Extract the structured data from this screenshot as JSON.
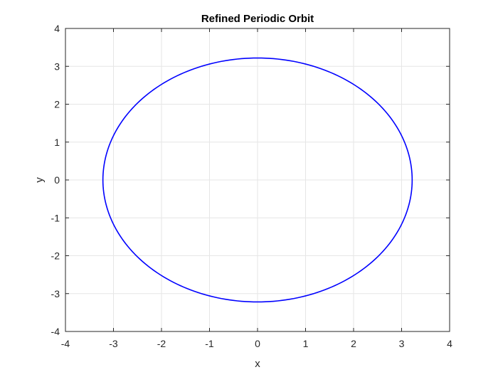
{
  "chart_data": {
    "type": "line",
    "title": "Refined Periodic Orbit",
    "xlabel": "x",
    "ylabel": "y",
    "xlim": [
      -4,
      4
    ],
    "ylim": [
      -4,
      4
    ],
    "xticks": [
      -4,
      -3,
      -2,
      -1,
      0,
      1,
      2,
      3,
      4
    ],
    "yticks": [
      -4,
      -3,
      -2,
      -1,
      0,
      1,
      2,
      3,
      4
    ],
    "grid": true,
    "box": true,
    "series": [
      {
        "color": "#0000ff",
        "shape": "closed orbit",
        "center": [
          0,
          0
        ],
        "x_extent": [
          -3.22,
          3.22
        ],
        "y_extent": [
          -3.22,
          3.22
        ]
      }
    ]
  }
}
